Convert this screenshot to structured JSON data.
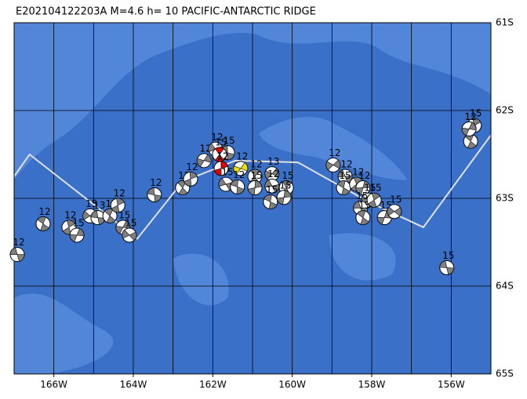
{
  "title": "E202104122203A M=4.6 h= 10 PACIFIC-ANTARCTIC RIDGE",
  "map": {
    "xlim": [
      -167,
      -155
    ],
    "ylim": [
      -65,
      -61
    ],
    "xticks": [
      {
        "value": -166,
        "label": "166W"
      },
      {
        "value": -164,
        "label": "164W"
      },
      {
        "value": -162,
        "label": "162W"
      },
      {
        "value": -160,
        "label": "160W"
      },
      {
        "value": -158,
        "label": "158W"
      },
      {
        "value": -156,
        "label": "156W"
      }
    ],
    "yticks": [
      {
        "value": -61,
        "label": "61S"
      },
      {
        "value": -62,
        "label": "62S"
      },
      {
        "value": -63,
        "label": "63S"
      },
      {
        "value": -64,
        "label": "64S"
      },
      {
        "value": -65,
        "label": "65S"
      }
    ],
    "xgrid": [
      -166,
      -165,
      -164,
      -163,
      -162,
      -161,
      -160,
      -159,
      -158,
      -157,
      -156
    ],
    "ocean_color": "#3a70c8",
    "ridge_color": "#e0e0e0",
    "ridge": {
      "lon": [
        -167.0,
        -166.61,
        -163.9,
        -162.76,
        -161.43,
        -159.86,
        -158.08,
        -156.7,
        -155.0
      ],
      "lat": [
        -62.75,
        -62.5,
        -63.46,
        -62.81,
        -62.57,
        -62.59,
        -63.04,
        -63.33,
        -62.28
      ]
    },
    "events": [
      {
        "lon": -166.92,
        "lat": -63.64,
        "depth": 12,
        "color": "#808080"
      },
      {
        "lon": -166.27,
        "lat": -63.29,
        "depth": 12,
        "color": "#808080"
      },
      {
        "lon": -165.62,
        "lat": -63.33,
        "depth": 12,
        "color": "#808080"
      },
      {
        "lon": -165.42,
        "lat": -63.42,
        "depth": 15,
        "color": "#808080"
      },
      {
        "lon": -165.09,
        "lat": -63.2,
        "depth": 15,
        "color": "#808080"
      },
      {
        "lon": -164.89,
        "lat": -63.22,
        "depth": 13,
        "color": "#808080"
      },
      {
        "lon": -164.59,
        "lat": -63.2,
        "depth": 15,
        "color": "#808080"
      },
      {
        "lon": -164.39,
        "lat": -63.08,
        "depth": 12,
        "color": "#808080"
      },
      {
        "lon": -164.26,
        "lat": -63.33,
        "depth": 15,
        "color": "#808080"
      },
      {
        "lon": -164.1,
        "lat": -63.42,
        "depth": 15,
        "color": "#808080"
      },
      {
        "lon": -163.47,
        "lat": -62.96,
        "depth": 12,
        "color": "#808080"
      },
      {
        "lon": -162.76,
        "lat": -62.88,
        "depth": 12,
        "color": "#808080"
      },
      {
        "lon": -162.56,
        "lat": -62.78,
        "depth": 12,
        "color": "#808080"
      },
      {
        "lon": -162.22,
        "lat": -62.57,
        "depth": 12,
        "color": "#808080"
      },
      {
        "lon": -161.93,
        "lat": -62.44,
        "depth": 12,
        "color": "#808080"
      },
      {
        "lon": -161.63,
        "lat": -62.48,
        "depth": 15,
        "color": "#808080"
      },
      {
        "lon": -161.83,
        "lat": -62.5,
        "depth": 15,
        "color": "#e00000"
      },
      {
        "lon": -161.79,
        "lat": -62.66,
        "depth": 12,
        "color": "#e00000"
      },
      {
        "lon": -161.3,
        "lat": -62.66,
        "depth": 12,
        "color": "#f0e000"
      },
      {
        "lon": -161.67,
        "lat": -62.84,
        "depth": 15,
        "color": "#808080"
      },
      {
        "lon": -161.38,
        "lat": -62.87,
        "depth": 12,
        "color": "#808080"
      },
      {
        "lon": -160.94,
        "lat": -62.75,
        "depth": 12,
        "color": "#808080"
      },
      {
        "lon": -160.94,
        "lat": -62.88,
        "depth": 15,
        "color": "#808080"
      },
      {
        "lon": -160.51,
        "lat": -62.72,
        "depth": 13,
        "color": "#808080"
      },
      {
        "lon": -160.51,
        "lat": -62.86,
        "depth": 12,
        "color": "#808080"
      },
      {
        "lon": -160.55,
        "lat": -63.04,
        "depth": 15,
        "color": "#808080"
      },
      {
        "lon": -160.15,
        "lat": -62.88,
        "depth": 15,
        "color": "#808080"
      },
      {
        "lon": -160.21,
        "lat": -62.99,
        "depth": 15,
        "color": "#808080"
      },
      {
        "lon": -158.97,
        "lat": -62.62,
        "depth": 12,
        "color": "#808080"
      },
      {
        "lon": -158.67,
        "lat": -62.75,
        "depth": 12,
        "color": "#808080"
      },
      {
        "lon": -158.71,
        "lat": -62.88,
        "depth": 15,
        "color": "#808080"
      },
      {
        "lon": -158.38,
        "lat": -62.84,
        "depth": 12,
        "color": "#808080"
      },
      {
        "lon": -158.22,
        "lat": -62.88,
        "depth": 12,
        "color": "#808080"
      },
      {
        "lon": -158.08,
        "lat": -63.02,
        "depth": 15,
        "color": "#808080"
      },
      {
        "lon": -158.28,
        "lat": -63.11,
        "depth": 15,
        "color": "#808080"
      },
      {
        "lon": -158.22,
        "lat": -63.22,
        "depth": 15,
        "color": "#808080"
      },
      {
        "lon": -157.94,
        "lat": -63.02,
        "depth": 15,
        "color": "#808080"
      },
      {
        "lon": -157.68,
        "lat": -63.22,
        "depth": 15,
        "color": "#808080"
      },
      {
        "lon": -157.43,
        "lat": -63.15,
        "depth": 15,
        "color": "#808080"
      },
      {
        "lon": -156.11,
        "lat": -63.79,
        "depth": 15,
        "color": "#808080"
      },
      {
        "lon": -155.51,
        "lat": -62.35,
        "depth": 15,
        "color": "#808080"
      },
      {
        "lon": -155.42,
        "lat": -62.17,
        "depth": 15,
        "color": "#808080"
      },
      {
        "lon": -155.55,
        "lat": -62.21,
        "depth": 12,
        "color": "#808080"
      }
    ]
  }
}
